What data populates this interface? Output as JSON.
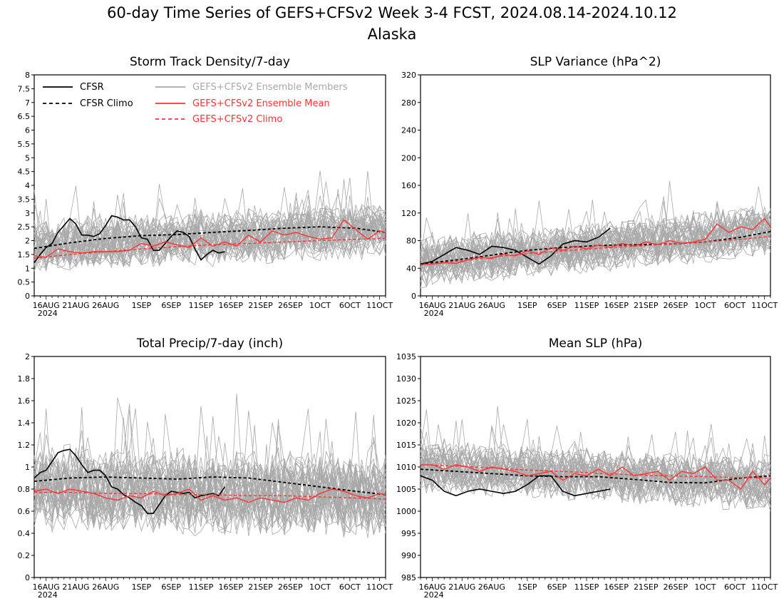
{
  "figure": {
    "title_line1": "60-day Time Series of GEFS+CFSv2 Week 3-4 FCST, 2024.08.14-2024.10.12",
    "title_line2": "Alaska"
  },
  "colors": {
    "cfsr": "#000000",
    "members": "#a8a8a8",
    "ens_mean": "#ff3333",
    "gefs_climo": "#ff3333"
  },
  "legend": {
    "cfsr": "CFSR",
    "cfsr_climo": "CFSR Climo",
    "members": "GEFS+CFSv2 Ensemble Members",
    "ens_mean": "GEFS+CFSv2 Ensemble Mean",
    "gefs_climo": "GEFS+CFSv2 Climo"
  },
  "chart_data": [
    {
      "type": "line",
      "title": "Storm Track Density/7-day",
      "x": {
        "start": "2024-08-14",
        "days": 60,
        "tick_labels": [
          "16AUG",
          "21AUG",
          "26AUG",
          "1SEP",
          "6SEP",
          "11SEP",
          "16SEP",
          "21SEP",
          "26SEP",
          "1OCT",
          "6OCT",
          "11OCT"
        ],
        "year_label": "2024"
      },
      "ylim": [
        0,
        8
      ],
      "yticks": [
        "0",
        "0.5",
        "1",
        "1.5",
        "2",
        "2.5",
        "3",
        "3.5",
        "4",
        "4.5",
        "5",
        "5.5",
        "6",
        "6.5",
        "7",
        "7.5",
        "8"
      ],
      "legend_position": "top",
      "members": {
        "count": 40,
        "center": [
          1.8,
          2.1,
          2.4
        ],
        "spread": 0.75
      },
      "series": [
        {
          "key": "cfsr",
          "x": [
            0,
            1,
            2,
            3,
            4,
            5,
            6,
            7,
            8,
            9,
            10,
            11,
            12,
            13,
            14,
            15,
            16,
            17,
            18,
            19,
            20,
            21,
            22,
            23,
            24,
            25,
            26,
            27,
            28,
            29,
            30,
            31,
            32
          ],
          "y": [
            1.2,
            1.5,
            1.75,
            1.9,
            2.3,
            2.55,
            2.8,
            2.6,
            2.2,
            2.2,
            2.15,
            2.25,
            2.55,
            2.9,
            2.85,
            2.75,
            2.75,
            2.5,
            2.1,
            2.05,
            1.65,
            1.65,
            1.9,
            2.15,
            2.35,
            2.3,
            2.15,
            1.7,
            1.3,
            1.5,
            1.65,
            1.55,
            1.6
          ]
        },
        {
          "key": "cfsr_climo",
          "x": [
            0,
            6,
            12,
            18,
            24,
            30,
            36,
            42,
            48,
            54,
            59
          ],
          "y": [
            1.72,
            1.92,
            2.08,
            2.18,
            2.22,
            2.3,
            2.37,
            2.45,
            2.5,
            2.45,
            2.3
          ]
        },
        {
          "key": "ens_mean",
          "x": [
            0,
            2,
            4,
            6,
            8,
            10,
            12,
            14,
            16,
            18,
            20,
            22,
            24,
            26,
            28,
            30,
            32,
            34,
            36,
            38,
            40,
            42,
            44,
            46,
            48,
            50,
            52,
            54,
            56,
            58,
            59
          ],
          "y": [
            1.45,
            1.4,
            1.7,
            1.6,
            1.55,
            1.6,
            1.6,
            1.6,
            1.65,
            1.9,
            1.8,
            1.95,
            1.85,
            1.75,
            2.1,
            1.8,
            1.95,
            1.8,
            2.2,
            1.95,
            2.35,
            2.2,
            2.3,
            2.15,
            2.05,
            2.1,
            2.75,
            2.4,
            2.05,
            2.35,
            2.3
          ]
        },
        {
          "key": "gefs_climo",
          "x": [
            0,
            6,
            12,
            18,
            24,
            30,
            36,
            42,
            48,
            54,
            59
          ],
          "y": [
            1.36,
            1.5,
            1.6,
            1.7,
            1.78,
            1.85,
            1.9,
            1.95,
            2.0,
            2.05,
            2.08
          ]
        }
      ]
    },
    {
      "type": "line",
      "title": "SLP Variance (hPa^2)",
      "x": {
        "start": "2024-08-14",
        "days": 60,
        "tick_labels": [
          "16AUG",
          "21AUG",
          "26AUG",
          "1SEP",
          "6SEP",
          "11SEP",
          "16SEP",
          "21SEP",
          "26SEP",
          "1OCT",
          "6OCT",
          "11OCT"
        ],
        "year_label": "2024"
      },
      "ylim": [
        0,
        320
      ],
      "yticks": [
        "0",
        "40",
        "80",
        "120",
        "160",
        "200",
        "240",
        "280",
        "320"
      ],
      "members": {
        "count": 40,
        "center": [
          48,
          70,
          95
        ],
        "spread": 28
      },
      "series": [
        {
          "key": "cfsr",
          "x": [
            0,
            2,
            4,
            6,
            8,
            10,
            12,
            14,
            16,
            18,
            20,
            22,
            24,
            26,
            28,
            30,
            32
          ],
          "y": [
            46,
            50,
            60,
            70,
            66,
            60,
            72,
            70,
            66,
            56,
            46,
            58,
            75,
            80,
            78,
            85,
            98
          ]
        },
        {
          "key": "cfsr_climo",
          "x": [
            0,
            6,
            12,
            18,
            24,
            30,
            36,
            42,
            48,
            54,
            59
          ],
          "y": [
            46,
            52,
            59,
            66,
            70,
            73,
            74,
            75,
            78,
            85,
            93
          ]
        },
        {
          "key": "ens_mean",
          "x": [
            0,
            2,
            4,
            6,
            8,
            10,
            12,
            14,
            16,
            18,
            20,
            22,
            24,
            26,
            28,
            30,
            32,
            34,
            36,
            38,
            40,
            42,
            44,
            46,
            48,
            50,
            52,
            54,
            56,
            58,
            59
          ],
          "y": [
            45,
            46,
            48,
            47,
            52,
            56,
            54,
            60,
            58,
            65,
            60,
            70,
            66,
            72,
            68,
            74,
            70,
            76,
            72,
            78,
            74,
            80,
            76,
            78,
            82,
            104,
            92,
            100,
            96,
            112,
            100
          ]
        },
        {
          "key": "gefs_climo",
          "x": [
            0,
            6,
            12,
            18,
            24,
            30,
            36,
            42,
            48,
            54,
            59
          ],
          "y": [
            45,
            50,
            56,
            61,
            65,
            69,
            72,
            75,
            78,
            82,
            86
          ]
        }
      ]
    },
    {
      "type": "line",
      "title": "Total Precip/7-day (inch)",
      "x": {
        "start": "2024-08-14",
        "days": 60,
        "tick_labels": [
          "16AUG",
          "21AUG",
          "26AUG",
          "1SEP",
          "6SEP",
          "11SEP",
          "16SEP",
          "21SEP",
          "26SEP",
          "1OCT",
          "6OCT",
          "11OCT"
        ],
        "year_label": "2024"
      },
      "ylim": [
        0,
        2
      ],
      "yticks": [
        "0",
        "0.2",
        "0.4",
        "0.6",
        "0.8",
        "1",
        "1.2",
        "1.4",
        "1.6",
        "1.8",
        "2"
      ],
      "members": {
        "count": 40,
        "center": [
          0.8,
          0.75,
          0.72
        ],
        "spread": 0.3
      },
      "series": [
        {
          "key": "cfsr",
          "x": [
            0,
            1,
            2,
            3,
            4,
            5,
            6,
            7,
            8,
            9,
            10,
            11,
            12,
            13,
            14,
            15,
            16,
            17,
            18,
            19,
            20,
            21,
            22,
            23,
            24,
            25,
            26,
            27,
            28,
            29,
            30,
            31,
            32
          ],
          "y": [
            0.9,
            0.95,
            0.97,
            1.05,
            1.13,
            1.15,
            1.16,
            1.1,
            1.02,
            0.95,
            0.97,
            0.97,
            0.92,
            0.82,
            0.8,
            0.75,
            0.72,
            0.68,
            0.65,
            0.58,
            0.58,
            0.66,
            0.74,
            0.78,
            0.77,
            0.76,
            0.77,
            0.72,
            0.74,
            0.75,
            0.76,
            0.74,
            0.82
          ]
        },
        {
          "key": "cfsr_climo",
          "x": [
            0,
            6,
            12,
            18,
            24,
            30,
            36,
            42,
            48,
            54,
            59
          ],
          "y": [
            0.87,
            0.9,
            0.91,
            0.9,
            0.89,
            0.91,
            0.9,
            0.86,
            0.82,
            0.78,
            0.75
          ]
        },
        {
          "key": "ens_mean",
          "x": [
            0,
            2,
            4,
            6,
            8,
            10,
            12,
            14,
            16,
            18,
            20,
            22,
            24,
            26,
            28,
            30,
            32,
            34,
            36,
            38,
            40,
            42,
            44,
            46,
            48,
            50,
            52,
            54,
            56,
            58,
            59
          ],
          "y": [
            0.78,
            0.8,
            0.76,
            0.8,
            0.78,
            0.76,
            0.72,
            0.7,
            0.74,
            0.72,
            0.78,
            0.74,
            0.76,
            0.8,
            0.7,
            0.74,
            0.7,
            0.72,
            0.68,
            0.72,
            0.7,
            0.68,
            0.72,
            0.7,
            0.76,
            0.8,
            0.78,
            0.74,
            0.72,
            0.76,
            0.75
          ]
        },
        {
          "key": "gefs_climo",
          "x": [
            0,
            6,
            12,
            18,
            24,
            30,
            36,
            42,
            48,
            54,
            59
          ],
          "y": [
            0.77,
            0.77,
            0.76,
            0.76,
            0.75,
            0.75,
            0.74,
            0.74,
            0.73,
            0.72,
            0.71
          ]
        }
      ]
    },
    {
      "type": "line",
      "title": "Mean SLP (hPa)",
      "x": {
        "start": "2024-08-14",
        "days": 60,
        "tick_labels": [
          "16AUG",
          "21AUG",
          "26AUG",
          "1SEP",
          "6SEP",
          "11SEP",
          "16SEP",
          "21SEP",
          "26SEP",
          "1OCT",
          "6OCT",
          "11OCT"
        ],
        "year_label": "2024"
      },
      "ylim": [
        985,
        1035
      ],
      "yticks": [
        "985",
        "990",
        "995",
        "1000",
        "1005",
        "1010",
        "1015",
        "1020",
        "1025",
        "1030",
        "1035"
      ],
      "members": {
        "count": 40,
        "center": [
          1010,
          1008,
          1006
        ],
        "spread": 4.5
      },
      "series": [
        {
          "key": "cfsr",
          "x": [
            0,
            2,
            4,
            6,
            8,
            10,
            12,
            14,
            16,
            18,
            20,
            22,
            24,
            26,
            28,
            30,
            32
          ],
          "y": [
            1008,
            1007,
            1004.5,
            1003.5,
            1004.5,
            1005,
            1004.5,
            1004,
            1004.5,
            1006,
            1008,
            1008,
            1004.5,
            1003.5,
            1004,
            1004.5,
            1005
          ]
        },
        {
          "key": "cfsr_climo",
          "x": [
            0,
            6,
            12,
            18,
            24,
            30,
            36,
            42,
            48,
            54,
            59
          ],
          "y": [
            1009.5,
            1009,
            1008.5,
            1008,
            1007.8,
            1007.8,
            1007.2,
            1006.5,
            1006.4,
            1007.5,
            1008
          ]
        },
        {
          "key": "ens_mean",
          "x": [
            0,
            2,
            4,
            6,
            8,
            10,
            12,
            14,
            16,
            18,
            20,
            22,
            24,
            26,
            28,
            30,
            32,
            34,
            36,
            38,
            40,
            42,
            44,
            46,
            48,
            50,
            52,
            54,
            56,
            58,
            59
          ],
          "y": [
            1010.5,
            1010.5,
            1009.5,
            1010.5,
            1010,
            1009,
            1010,
            1009.5,
            1009,
            1008,
            1008.5,
            1009,
            1007,
            1008.5,
            1008,
            1009.5,
            1008,
            1010,
            1008,
            1008.5,
            1009,
            1007,
            1009,
            1008.5,
            1010,
            1007,
            1007,
            1005,
            1009,
            1006,
            1007.5
          ]
        },
        {
          "key": "gefs_climo",
          "x": [
            0,
            6,
            12,
            18,
            24,
            30,
            36,
            42,
            48,
            54,
            59
          ],
          "y": [
            1010.5,
            1010.2,
            1009.8,
            1009.3,
            1009,
            1008.6,
            1008.2,
            1008,
            1007.8,
            1007.6,
            1007.5
          ]
        }
      ]
    }
  ]
}
